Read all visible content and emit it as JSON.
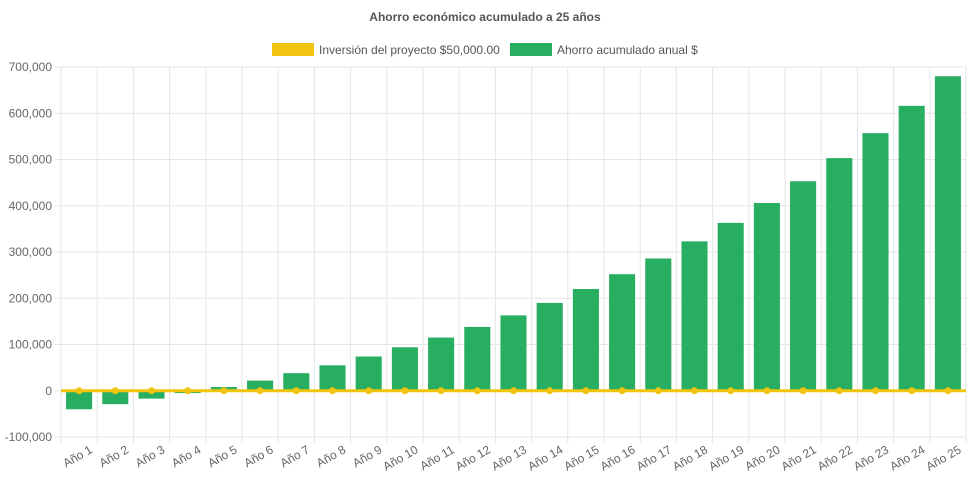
{
  "chart_data": {
    "type": "bar",
    "title": "Ahorro económico acumulado a 25 años",
    "categories": [
      "Año 1",
      "Año 2",
      "Año 3",
      "Año 4",
      "Año 5",
      "Año 6",
      "Año 7",
      "Año 8",
      "Año 9",
      "Año 10",
      "Año 11",
      "Año 12",
      "Año 13",
      "Año 14",
      "Año 15",
      "Año 16",
      "Año 17",
      "Año 18",
      "Año 19",
      "Año 20",
      "Año 21",
      "Año 22",
      "Año 23",
      "Año 24",
      "Año 25"
    ],
    "series": [
      {
        "name": "Inversión del proyecto $50,000.00",
        "kind": "line",
        "color": "#f1c40f",
        "values": [
          0,
          0,
          0,
          0,
          0,
          0,
          0,
          0,
          0,
          0,
          0,
          0,
          0,
          0,
          0,
          0,
          0,
          0,
          0,
          0,
          0,
          0,
          0,
          0,
          0
        ]
      },
      {
        "name": "Ahorro acumulado anual $",
        "kind": "bar",
        "color": "#27ae60",
        "values": [
          -40000,
          -29000,
          -17000,
          -5000,
          8000,
          22000,
          38000,
          55000,
          74000,
          94000,
          115000,
          138000,
          163000,
          190000,
          220000,
          252000,
          286000,
          323000,
          363000,
          406000,
          453000,
          503000,
          557000,
          616000,
          680000
        ]
      }
    ],
    "ylim": [
      -100000,
      700000
    ],
    "yticks": [
      {
        "value": 700000,
        "label": "700,000"
      },
      {
        "value": 600000,
        "label": "600,000"
      },
      {
        "value": 500000,
        "label": "500,000"
      },
      {
        "value": 400000,
        "label": "400,000"
      },
      {
        "value": 300000,
        "label": "300,000"
      },
      {
        "value": 200000,
        "label": "200,000"
      },
      {
        "value": 100000,
        "label": "100,000"
      },
      {
        "value": 0,
        "label": "0"
      },
      {
        "value": -100000,
        "label": "-100,000"
      }
    ],
    "grid": true,
    "legend_position": "top-center"
  }
}
